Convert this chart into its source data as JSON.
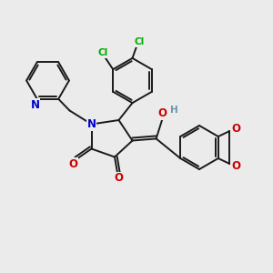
{
  "background_color": "#ebebeb",
  "bond_color": "#1a1a1a",
  "atom_colors": {
    "N": "#0000cc",
    "O": "#cc0000",
    "Cl": "#00aa00",
    "H": "#6699aa"
  },
  "figsize": [
    3.0,
    3.0
  ],
  "dpi": 100,
  "lw": 1.4
}
